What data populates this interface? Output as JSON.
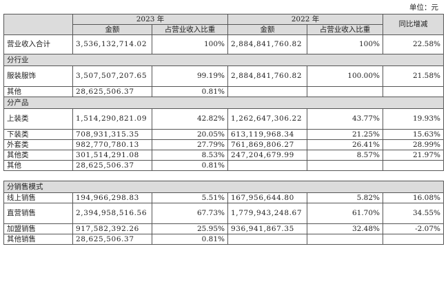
{
  "unit": "单位：元",
  "headers": {
    "y2023": "2023 年",
    "y2022": "2022 年",
    "yoy": "同比增减",
    "amount": "金额",
    "share": "占营业收入比重"
  },
  "total": {
    "label": "营业收入合计",
    "a23": "3,536,132,714.02",
    "s23": "100%",
    "a22": "2,884,841,760.82",
    "s22": "100%",
    "yoy": "22.58%"
  },
  "sections": {
    "industry": "分行业",
    "product": "分产品",
    "channel": "分销售模式"
  },
  "industry_rows": [
    {
      "label": "服装服饰",
      "a23": "3,507,507,207.65",
      "s23": "99.19%",
      "a22": "2,884,841,760.82",
      "s22": "100.00%",
      "yoy": "21.58%"
    },
    {
      "label": "其他",
      "a23": "28,625,506.37",
      "s23": "0.81%",
      "a22": "",
      "s22": "",
      "yoy": ""
    }
  ],
  "product_rows": [
    {
      "label": "上装类",
      "a23": "1,514,290,821.09",
      "s23": "42.82%",
      "a22": "1,262,647,306.22",
      "s22": "43.77%",
      "yoy": "19.93%"
    },
    {
      "label": "下装类",
      "a23": "708,931,315.35",
      "s23": "20.05%",
      "a22": "613,119,968.34",
      "s22": "21.25%",
      "yoy": "15.63%"
    },
    {
      "label": "外套类",
      "a23": "982,770,780.13",
      "s23": "27.79%",
      "a22": "761,869,806.27",
      "s22": "26.41%",
      "yoy": "28.99%"
    },
    {
      "label": "其他类",
      "a23": "301,514,291.08",
      "s23": "8.53%",
      "a22": "247,204,679.99",
      "s22": "8.57%",
      "yoy": "21.97%"
    },
    {
      "label": "其他",
      "a23": "28,625,506.37",
      "s23": "0.81%",
      "a22": "",
      "s22": "",
      "yoy": ""
    }
  ],
  "channel_rows": [
    {
      "label": "线上销售",
      "a23": "194,966,298.83",
      "s23": "5.51%",
      "a22": "167,956,644.80",
      "s22": "5.82%",
      "yoy": "16.08%"
    },
    {
      "label": "直营销售",
      "a23": "2,394,958,516.56",
      "s23": "67.73%",
      "a22": "1,779,943,248.67",
      "s22": "61.70%",
      "yoy": "34.55%"
    },
    {
      "label": "加盟销售",
      "a23": "917,582,392.26",
      "s23": "25.95%",
      "a22": "936,941,867.35",
      "s22": "32.48%",
      "yoy": "-2.07%"
    },
    {
      "label": "其他销售",
      "a23": "28,625,506.37",
      "s23": "0.81%",
      "a22": "",
      "s22": "",
      "yoy": ""
    }
  ]
}
